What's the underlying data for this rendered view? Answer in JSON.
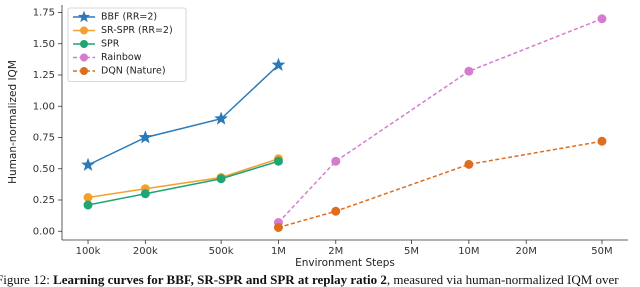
{
  "chart_data": {
    "type": "line",
    "xlabel": "Environment Steps",
    "ylabel": "Human-normalized IQM",
    "xscale": "log",
    "xlim": [
      73000,
      68500000
    ],
    "xticks": [
      {
        "value": 100000,
        "label": "100k"
      },
      {
        "value": 200000,
        "label": "200k"
      },
      {
        "value": 500000,
        "label": "500k"
      },
      {
        "value": 1000000,
        "label": "1M"
      },
      {
        "value": 2000000,
        "label": "2M"
      },
      {
        "value": 5000000,
        "label": "5M"
      },
      {
        "value": 10000000,
        "label": "10M"
      },
      {
        "value": 20000000,
        "label": "20M"
      },
      {
        "value": 50000000,
        "label": "50M"
      }
    ],
    "ylim": [
      -0.07,
      1.81
    ],
    "yticks": [
      {
        "value": 0,
        "label": "0.00"
      },
      {
        "value": 0.25,
        "label": "0.25"
      },
      {
        "value": 0.5,
        "label": "0.50"
      },
      {
        "value": 0.75,
        "label": "0.75"
      },
      {
        "value": 1,
        "label": "1.00"
      },
      {
        "value": 1.25,
        "label": "1.25"
      },
      {
        "value": 1.5,
        "label": "1.50"
      },
      {
        "value": 1.75,
        "label": "1.75"
      }
    ],
    "grid": false,
    "legend": "upper left",
    "series": [
      {
        "name": "BBF (RR=2)",
        "color": "#2a7ab8",
        "marker": "star",
        "linestyle": "solid",
        "x": [
          100000,
          200000,
          500000,
          1000000
        ],
        "values": [
          0.53,
          0.75,
          0.9,
          1.33
        ]
      },
      {
        "name": "SR-SPR (RR=2)",
        "color": "#f4a02e",
        "marker": "circle",
        "linestyle": "solid",
        "x": [
          100000,
          200000,
          500000,
          1000000
        ],
        "values": [
          0.27,
          0.34,
          0.43,
          0.58
        ]
      },
      {
        "name": "SPR",
        "color": "#1ea574",
        "marker": "circle",
        "linestyle": "solid",
        "x": [
          100000,
          200000,
          500000,
          1000000
        ],
        "values": [
          0.21,
          0.3,
          0.42,
          0.56
        ]
      },
      {
        "name": "Rainbow",
        "color": "#d57ccf",
        "marker": "circle",
        "linestyle": "dashed",
        "x": [
          1000000,
          2000000,
          10000000,
          50000000
        ],
        "values": [
          0.07,
          0.56,
          1.28,
          1.7
        ]
      },
      {
        "name": "DQN (Nature)",
        "color": "#de6d1e",
        "marker": "circle",
        "linestyle": "dashed",
        "x": [
          1000000,
          2000000,
          10000000,
          50000000
        ],
        "values": [
          0.03,
          0.16,
          0.535,
          0.72
        ]
      }
    ]
  },
  "caption": {
    "label": "Figure 12:",
    "bold": "Learning curves for BBF, SR-SPR and SPR at replay ratio 2",
    "rest": ", measured via human-normalized IQM over"
  }
}
